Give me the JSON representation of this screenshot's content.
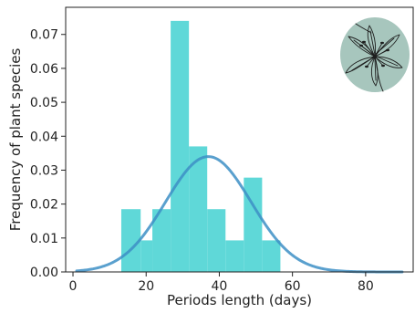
{
  "chart_data": {
    "type": "bar",
    "xlabel": "Periods length (days)",
    "ylabel": "Frequency of plant species",
    "xlim": [
      -2,
      93
    ],
    "ylim": [
      0,
      0.078
    ],
    "xticks": [
      0,
      20,
      40,
      60,
      80
    ],
    "yticks": [
      0.0,
      0.01,
      0.02,
      0.03,
      0.04,
      0.05,
      0.06,
      0.07
    ],
    "ytick_labels": [
      "0.00",
      "0.01",
      "0.02",
      "0.03",
      "0.04",
      "0.05",
      "0.06",
      "0.07"
    ],
    "grid": false,
    "histogram": {
      "bin_edges": [
        13.2,
        18.5,
        21.7,
        26.7,
        31.7,
        36.7,
        41.7,
        46.7,
        51.7,
        56.7
      ],
      "values": [
        0.0185,
        0.0093,
        0.0185,
        0.074,
        0.037,
        0.0185,
        0.0093,
        0.0278,
        0.0093
      ],
      "color": "#5fd8d8"
    },
    "density_curve": {
      "mean": 37.0,
      "sd": 11.7,
      "peak": 0.034,
      "x_range": [
        1,
        90
      ],
      "color": "#3d8fc6"
    },
    "inset_image": {
      "icon": "lily-flower-icon",
      "background": "#a7c6bd"
    }
  }
}
